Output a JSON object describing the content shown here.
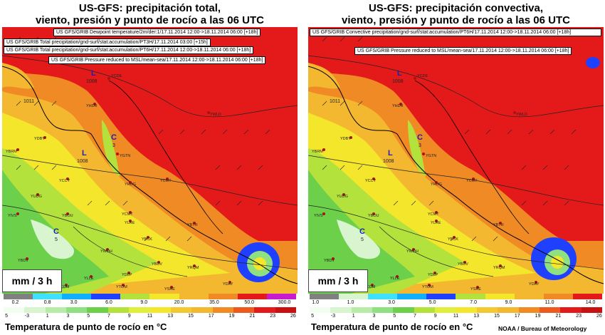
{
  "panels": [
    {
      "title_line1": "US-GFS: precipitación total,",
      "title_line2": "viento, presión y punto de rocío a las 06 UTC",
      "headers": [
        "US GFS/GRIB Dewpoint temperature/2m/der:1/17.11.2014 12:00->18.11.2014 06:00 [+18h]",
        "US GFS/GRIB Total precipitation/gnd-surf/stat:accumulation/PT3H/17.11.2014 03:00 [+15h]",
        "US GFS/GRIB Total precipitation/gnd-surf/stat:accumulation/PT6H/17.11.2014 12:00->18.11.2014 06:00 [+18h]",
        "US GFS/GRIB Pressure reduced to MSL/mean-sea/17.11.2014 12:00->18.11.2014 06:00 [+18h]"
      ],
      "unit_label": "mm / 3 h",
      "precip_ticks": [
        "0.2",
        "0.8",
        "3.0",
        "6.0",
        "9.0",
        "20.0",
        "35.0",
        "50.0",
        "300.0"
      ],
      "dewpoint_ticks": [
        "5",
        "-3",
        "1",
        "3",
        "5",
        "7",
        "9",
        "11",
        "13",
        "15",
        "17",
        "19",
        "21",
        "23",
        "26"
      ],
      "dewpoint_label": "Temperatura de punto de rocío en °C"
    },
    {
      "title_line1": "US-GFS: precipitación convectiva,",
      "title_line2": "viento, presión y punto de rocío a las 06 UTC",
      "headers": [
        "US GFS/GRIB  Convective  precipitation/gnd-surf/stat:accumulation/PT6H/17.11.2014  12:00->18.11.2014  06:00 [+18h]",
        "US GFS/GRIB Pressure reduced to MSL/mean-sea/17.11.2014 12:00->18.11.2014 06:00 [+18h]"
      ],
      "unit_label": "mm / 3 h",
      "precip_ticks": [
        "1.0",
        "1.0",
        "3.0",
        "5.0",
        "7.0",
        "9.0",
        "11.0",
        "14.0"
      ],
      "dewpoint_ticks": [
        "5",
        "-3",
        "1",
        "3",
        "5",
        "7",
        "9",
        "11",
        "13",
        "15",
        "17",
        "19",
        "21",
        "23",
        "26"
      ],
      "dewpoint_label": "Temperatura de punto de rocío en °C"
    }
  ],
  "credit": "NOAA / Bureau of Meteorology",
  "stations": [
    "YCDE",
    "YBRM",
    "YHDR",
    "YWLD",
    "YDBY",
    "YGTN",
    "YCCY",
    "YHUG",
    "YCMT",
    "YUDG",
    "YBOU",
    "YBTR",
    "YIVS",
    "YCMT",
    "YLRE",
    "YBCK",
    "YBDV",
    "YWDH",
    "YRQM",
    "YDLP",
    "YBDV",
    "YLLE",
    "YTOM",
    "YSRE",
    "YDAY",
    "YCOM"
  ],
  "pressure_labels": {
    "L1": "L",
    "L1_value": "1008",
    "L2": "L",
    "L2_value": "1008",
    "C1": "C",
    "C1_value": "3",
    "C2": "C",
    "C2_value": "5",
    "iso1": "1011"
  },
  "colors": {
    "red": "#e41a1a",
    "orange": "#f08a24",
    "yellow": "#f4e62a",
    "lime": "#b4e23c",
    "green": "#6cd04a",
    "pale": "#d8f5d0",
    "blue": "#2040ff"
  }
}
